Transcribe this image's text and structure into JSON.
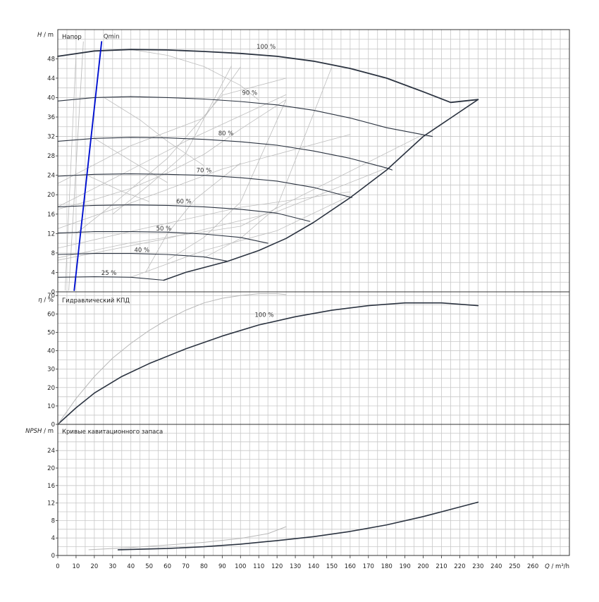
{
  "chart_data": [
    {
      "type": "line",
      "title": "Напор",
      "xlabel": "Q / m³/h",
      "ylabel": "H / m",
      "xlim": [
        0,
        280
      ],
      "ylim": [
        0,
        54
      ],
      "x_ticks": [
        0,
        5,
        10,
        15,
        20,
        25,
        30,
        35,
        40,
        45,
        50,
        55,
        60,
        65,
        70,
        75,
        80,
        85,
        90,
        95,
        100,
        105,
        110,
        115,
        120,
        125,
        130,
        135,
        140,
        145,
        150,
        155,
        160,
        165,
        170,
        175,
        180,
        185,
        190,
        195,
        200,
        205,
        210,
        215,
        220,
        225,
        230,
        235,
        240,
        245,
        250,
        255,
        260,
        265,
        270,
        275,
        280
      ],
      "x_tick_labels": [
        "0",
        "10",
        "20",
        "30",
        "40",
        "50",
        "60",
        "70",
        "80",
        "90",
        "100",
        "110",
        "120",
        "130",
        "140",
        "150",
        "160",
        "170",
        "180",
        "190",
        "200",
        "210",
        "220",
        "230",
        "240",
        "250",
        "260"
      ],
      "y_ticks": [
        0,
        2,
        4,
        6,
        8,
        10,
        12,
        14,
        16,
        18,
        20,
        22,
        24,
        26,
        28,
        30,
        32,
        34,
        36,
        38,
        40,
        42,
        44,
        46,
        48,
        50,
        52,
        54
      ],
      "y_tick_labels": [
        "0",
        "4",
        "8",
        "12",
        "16",
        "20",
        "24",
        "28",
        "32",
        "36",
        "40",
        "44",
        "48"
      ],
      "grid": true,
      "series": [
        {
          "name": "100 %",
          "x": [
            0,
            20,
            40,
            60,
            80,
            100,
            120,
            140,
            160,
            180,
            200,
            215,
            230
          ],
          "y": [
            48.5,
            49.6,
            49.9,
            49.8,
            49.5,
            49.1,
            48.5,
            47.5,
            46.0,
            44.0,
            41.2,
            39.0,
            39.6
          ]
        },
        {
          "name": "90 %",
          "x": [
            0,
            20,
            40,
            60,
            80,
            100,
            120,
            140,
            160,
            180,
            205
          ],
          "y": [
            39.3,
            40.0,
            40.2,
            40.0,
            39.7,
            39.2,
            38.5,
            37.4,
            35.8,
            33.8,
            32.0
          ]
        },
        {
          "name": "80 %",
          "x": [
            0,
            20,
            40,
            60,
            80,
            100,
            120,
            140,
            160,
            180,
            183
          ],
          "y": [
            31.0,
            31.6,
            31.8,
            31.7,
            31.4,
            30.9,
            30.2,
            29.0,
            27.5,
            25.5,
            25.1
          ]
        },
        {
          "name": "70 %",
          "x": [
            0,
            20,
            40,
            60,
            80,
            100,
            120,
            140,
            161
          ],
          "y": [
            23.8,
            24.2,
            24.3,
            24.2,
            24.0,
            23.5,
            22.8,
            21.5,
            19.4
          ]
        },
        {
          "name": "60 %",
          "x": [
            0,
            20,
            40,
            60,
            80,
            100,
            120,
            138
          ],
          "y": [
            17.5,
            17.8,
            17.9,
            17.8,
            17.5,
            17.0,
            16.2,
            14.5
          ]
        },
        {
          "name": "50 %",
          "x": [
            0,
            20,
            40,
            60,
            80,
            100,
            115
          ],
          "y": [
            12.1,
            12.4,
            12.4,
            12.3,
            11.9,
            11.2,
            10.0
          ]
        },
        {
          "name": "40 %",
          "x": [
            0,
            20,
            40,
            60,
            80,
            93
          ],
          "y": [
            7.7,
            7.9,
            7.9,
            7.7,
            7.2,
            6.3
          ]
        },
        {
          "name": "25 %",
          "x": [
            0,
            20,
            40,
            58
          ],
          "y": [
            3.0,
            3.1,
            3.0,
            2.4
          ]
        },
        {
          "name": "",
          "x": [
            58,
            70,
            85,
            93,
            110,
            125,
            140,
            160,
            180,
            200,
            230
          ],
          "y": [
            2.4,
            4.0,
            5.5,
            6.3,
            8.5,
            11.0,
            14.3,
            19.4,
            25.1,
            32.0,
            39.6
          ]
        },
        {
          "name": "Qmin",
          "x": [
            9,
            24
          ],
          "y": [
            0.3,
            51.5
          ]
        }
      ],
      "annotations": [
        "100 %",
        "90 %",
        "80 %",
        "70 %",
        "60 %",
        "50 %",
        "40 %",
        "25 %",
        "Qmin"
      ],
      "colors": {
        "curves": "#2b3340",
        "guide": "#b8b8b8",
        "qmin": "#0010d0"
      }
    },
    {
      "type": "line",
      "title": "Гидравлический КПД",
      "ylabel": "η / %",
      "xlim": [
        0,
        280
      ],
      "ylim": [
        0,
        72
      ],
      "y_ticks": [
        0,
        5,
        10,
        15,
        20,
        25,
        30,
        35,
        40,
        45,
        50,
        55,
        60,
        65,
        70
      ],
      "y_tick_labels": [
        "0",
        "10",
        "20",
        "30",
        "40",
        "50",
        "60",
        "70"
      ],
      "grid": true,
      "series": [
        {
          "name": "100 %",
          "x": [
            0,
            10,
            20,
            35,
            50,
            70,
            90,
            110,
            130,
            150,
            170,
            190,
            210,
            230
          ],
          "y": [
            0,
            9,
            17,
            26,
            33,
            41,
            48,
            54,
            58.5,
            62,
            64.5,
            66,
            66,
            64.5
          ]
        },
        {
          "name": "",
          "x": [
            0,
            10,
            20,
            30,
            40,
            50,
            60,
            70,
            80,
            90,
            100,
            110,
            120,
            125
          ],
          "y": [
            0,
            14,
            26,
            36,
            44,
            51,
            57,
            62,
            66,
            68.5,
            70,
            71,
            71,
            70.5
          ]
        }
      ],
      "annotations": [
        "100 %"
      ]
    },
    {
      "type": "line",
      "title": "Кривые кавитационного запаса",
      "ylabel": "NPSH / m",
      "xlabel": "Q / m³/h",
      "xlim": [
        0,
        280
      ],
      "ylim": [
        0,
        30
      ],
      "y_ticks": [
        0,
        2,
        4,
        6,
        8,
        10,
        12,
        14,
        16,
        18,
        20,
        22,
        24,
        26,
        28,
        30
      ],
      "y_tick_labels": [
        "0",
        "4",
        "8",
        "12",
        "16",
        "20",
        "24"
      ],
      "grid": true,
      "series": [
        {
          "name": "",
          "x": [
            33,
            60,
            80,
            100,
            120,
            140,
            160,
            180,
            200,
            230
          ],
          "y": [
            1.3,
            1.6,
            2.0,
            2.6,
            3.4,
            4.3,
            5.5,
            7.0,
            8.9,
            12.2
          ]
        },
        {
          "name": "",
          "x": [
            17,
            40,
            60,
            80,
            100,
            115,
            125
          ],
          "y": [
            1.3,
            1.8,
            2.4,
            3.0,
            3.9,
            5.0,
            6.6
          ]
        }
      ]
    }
  ],
  "labels": {
    "head_ylabel_letter": "H",
    "head_ylabel_unit": " / m",
    "eff_ylabel_letter": "η",
    "eff_ylabel_unit": " / %",
    "npsh_ylabel_letter": "NPSH",
    "npsh_ylabel_unit": " / m",
    "xaxis_letter": "Q",
    "xaxis_unit": " / m³/h"
  }
}
